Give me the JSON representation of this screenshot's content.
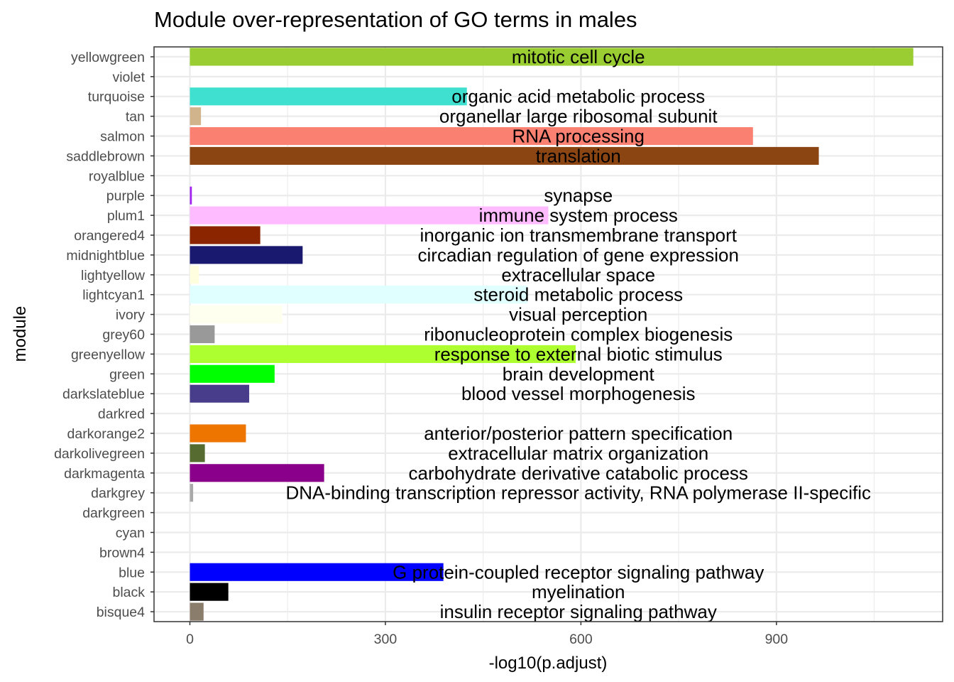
{
  "chart_data": {
    "type": "bar",
    "orientation": "horizontal",
    "title": "Module over-representation of GO terms in males",
    "xlabel": "-log10(p.adjust)",
    "ylabel": "module",
    "xlim": [
      -55,
      1155
    ],
    "x_ticks": [
      0,
      300,
      600,
      900
    ],
    "x_tick_labels": [
      "0",
      "300",
      "600",
      "900"
    ],
    "x_minor_ticks": [
      150,
      450,
      750,
      1050
    ],
    "label_x": 596,
    "grid": true,
    "legend": "none",
    "bars": [
      {
        "module": "yellowgreen",
        "value": 1110,
        "color": "#9ACD32",
        "term": "mitotic cell cycle"
      },
      {
        "module": "violet",
        "value": 0,
        "color": "#EE82EE",
        "term": ""
      },
      {
        "module": "turquoise",
        "value": 425,
        "color": "#40E0D0",
        "term": "organic acid metabolic process"
      },
      {
        "module": "tan",
        "value": 17,
        "color": "#D2B48C",
        "term": "organellar large ribosomal subunit"
      },
      {
        "module": "salmon",
        "value": 864,
        "color": "#FA8072",
        "term": "RNA processing"
      },
      {
        "module": "saddlebrown",
        "value": 965,
        "color": "#8B4513",
        "term": "translation"
      },
      {
        "module": "royalblue",
        "value": 0,
        "color": "#4169E1",
        "term": ""
      },
      {
        "module": "purple",
        "value": 3,
        "color": "#A020F0",
        "term": "synapse"
      },
      {
        "module": "plum1",
        "value": 550,
        "color": "#FFBBFF",
        "term": "immune system process"
      },
      {
        "module": "orangered4",
        "value": 108,
        "color": "#8B2500",
        "term": "inorganic ion transmembrane transport"
      },
      {
        "module": "midnightblue",
        "value": 173,
        "color": "#191970",
        "term": "circadian regulation of gene expression"
      },
      {
        "module": "lightyellow",
        "value": 14,
        "color": "#FFFFE0",
        "term": "extracellular space"
      },
      {
        "module": "lightcyan1",
        "value": 518,
        "color": "#E0FFFF",
        "term": "steroid metabolic process"
      },
      {
        "module": "ivory",
        "value": 142,
        "color": "#FFFFF0",
        "term": "visual perception"
      },
      {
        "module": "grey60",
        "value": 38,
        "color": "#999999",
        "term": "ribonucleoprotein complex biogenesis"
      },
      {
        "module": "greenyellow",
        "value": 592,
        "color": "#ADFF2F",
        "term": "response to external biotic stimulus"
      },
      {
        "module": "green",
        "value": 130,
        "color": "#00FF00",
        "term": "brain development"
      },
      {
        "module": "darkslateblue",
        "value": 91,
        "color": "#483D8B",
        "term": "blood vessel morphogenesis"
      },
      {
        "module": "darkred",
        "value": 0,
        "color": "#8B0000",
        "term": ""
      },
      {
        "module": "darkorange2",
        "value": 86,
        "color": "#EE7600",
        "term": "anterior/posterior pattern specification"
      },
      {
        "module": "darkolivegreen",
        "value": 23,
        "color": "#556B2F",
        "term": "extracellular matrix organization"
      },
      {
        "module": "darkmagenta",
        "value": 206,
        "color": "#8B008B",
        "term": "carbohydrate derivative catabolic process"
      },
      {
        "module": "darkgrey",
        "value": 5,
        "color": "#A9A9A9",
        "term": "DNA-binding transcription repressor activity, RNA polymerase II-specific"
      },
      {
        "module": "darkgreen",
        "value": 0,
        "color": "#006400",
        "term": ""
      },
      {
        "module": "cyan",
        "value": 0,
        "color": "#00FFFF",
        "term": ""
      },
      {
        "module": "brown4",
        "value": 0,
        "color": "#8B2323",
        "term": ""
      },
      {
        "module": "blue",
        "value": 389,
        "color": "#0000FF",
        "term": "G protein-coupled receptor signaling pathway"
      },
      {
        "module": "black",
        "value": 59,
        "color": "#000000",
        "term": "myelination"
      },
      {
        "module": "bisque4",
        "value": 21,
        "color": "#8B7D6B",
        "term": "insulin receptor signaling pathway"
      }
    ]
  }
}
